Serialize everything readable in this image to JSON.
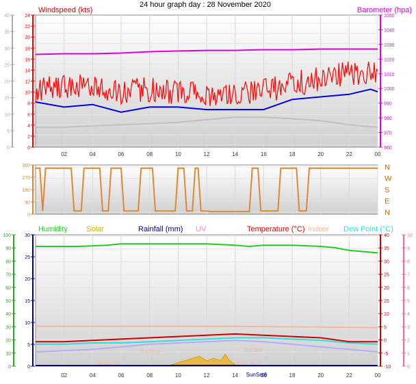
{
  "title": "24 hour graph day : 28 November 2020",
  "x_tick_labels": [
    "02",
    "04",
    "06",
    "08",
    "10",
    "12",
    "14",
    "16",
    "18",
    "20",
    "22",
    "00"
  ],
  "colors": {
    "windspeed": "#ff0000",
    "wind_avg": "#0000dd",
    "wind_grey": "#c0c0c0",
    "barometer": "#dd00dd",
    "direction": "#dd8833",
    "humidity": "#22cc22",
    "solar": "#ccaa00",
    "rainfall": "#000088",
    "uv": "#ff88cc",
    "temperature": "#cc0000",
    "indoor": "#f0b8a0",
    "dewpoint": "#33dddd",
    "lavender": "#b0b0ff"
  },
  "chart_data": [
    {
      "type": "line",
      "legend": {
        "left": "Windspeed (kts)",
        "right": "Barometer (hpa)"
      },
      "x_range": [
        0,
        24
      ],
      "y_left_ticks": [
        "0",
        "2",
        "4",
        "6",
        "8",
        "10",
        "12",
        "14",
        "16",
        "18",
        "20",
        "22",
        "24"
      ],
      "y_left_far_ticks": [
        "0",
        "5",
        "10",
        "15",
        "20",
        "25",
        "30",
        "35",
        "40"
      ],
      "y_right_ticks": [
        "960",
        "970",
        "980",
        "990",
        "1000",
        "1010",
        "1020",
        "1030",
        "1040",
        "1050"
      ],
      "ylim_left": [
        0,
        24
      ],
      "ylim_right": [
        960,
        1050
      ],
      "series": [
        {
          "key": "gust",
          "x": [
            0,
            2,
            4,
            6,
            8,
            10,
            12,
            14,
            16,
            18,
            20,
            22,
            24
          ],
          "values": [
            11,
            11.5,
            11.5,
            10.5,
            11,
            10.5,
            10,
            10,
            10.5,
            12,
            13,
            14,
            14
          ]
        },
        {
          "key": "avg",
          "x": [
            0,
            2,
            4,
            6,
            8,
            10,
            12,
            14,
            16,
            18,
            20,
            22,
            23.5,
            24
          ],
          "values": [
            8.5,
            7.5,
            8,
            6.5,
            7.5,
            7.5,
            7,
            7,
            7,
            9,
            9.5,
            10,
            11,
            10.5
          ]
        },
        {
          "key": "grey",
          "x": [
            0,
            2,
            4,
            6,
            8,
            10,
            12,
            14,
            16,
            18,
            20,
            22,
            24
          ],
          "values": [
            3.5,
            3.5,
            3.8,
            4,
            4.2,
            4.5,
            5,
            5.5,
            5.5,
            5.2,
            4.8,
            4,
            3.5
          ]
        },
        {
          "key": "baro",
          "x": [
            0,
            2,
            4,
            6,
            8,
            10,
            12,
            14,
            16,
            18,
            20,
            22,
            24
          ],
          "values": [
            1027,
            1027.5,
            1027.5,
            1028,
            1029,
            1029.5,
            1030,
            1030,
            1030.5,
            1030.5,
            1031,
            1031,
            1031
          ]
        }
      ]
    },
    {
      "type": "line",
      "y_left_ticks": [
        "0",
        "90",
        "180",
        "270",
        "360"
      ],
      "y_right_ticks": [
        "N",
        "E",
        "S",
        "W",
        "N"
      ],
      "ylim": [
        0,
        360
      ],
      "series": [
        {
          "key": "direction",
          "x": [
            0,
            0.3,
            0.5,
            0.7,
            2.5,
            2.7,
            3.2,
            3.4,
            4.5,
            4.7,
            5.1,
            5.3,
            6.0,
            6.2,
            7.2,
            7.4,
            8.2,
            8.4,
            9.8,
            10.0,
            10.4,
            10.6,
            11.0,
            11.2,
            11.4,
            11.6,
            12.0,
            12.2,
            15.0,
            15.2,
            15.6,
            15.8,
            17.0,
            17.2,
            18.3,
            18.5,
            19.0,
            19.2,
            20.0,
            20.2,
            24
          ],
          "values": [
            350,
            350,
            10,
            350,
            350,
            10,
            10,
            350,
            350,
            10,
            10,
            350,
            350,
            10,
            10,
            350,
            350,
            10,
            10,
            350,
            350,
            10,
            10,
            350,
            350,
            10,
            10,
            5,
            5,
            350,
            350,
            10,
            10,
            350,
            350,
            10,
            10,
            350,
            350,
            350,
            350
          ]
        }
      ]
    },
    {
      "type": "line",
      "legend": [
        "Humidity",
        "Solar",
        "Rainfall (mm)",
        "UV",
        "Temperature (°C)",
        "Indoor",
        "Dew Point (°C)"
      ],
      "y_far_left_ticks": [
        "0",
        "10",
        "20",
        "30",
        "40",
        "50",
        "60",
        "70",
        "80",
        "90",
        "100"
      ],
      "y_left_ticks": [
        "0",
        "5",
        "10",
        "15",
        "20",
        "25",
        "30"
      ],
      "y_right_ticks": [
        "-10",
        "-5",
        "0",
        "5",
        "10",
        "15",
        "20",
        "25",
        "30",
        "35",
        "40"
      ],
      "y_far_right_ticks": [
        "0",
        "1",
        "2",
        "3",
        "4",
        "5",
        "6",
        "7",
        "8",
        "9",
        "10"
      ],
      "ylim_temp": [
        -10,
        40
      ],
      "annotations": [
        "Moon Set",
        "SunRise",
        "SunSet",
        "Moon Rise",
        "SunSet6"
      ],
      "series": [
        {
          "key": "humidity",
          "x": [
            0,
            3,
            5,
            6,
            10,
            12,
            14,
            15,
            16,
            18,
            20,
            21,
            22,
            23,
            24
          ],
          "values": [
            92,
            92,
            93,
            94,
            94,
            94,
            93,
            92,
            93,
            93,
            92,
            91,
            89,
            88,
            87
          ]
        },
        {
          "key": "indoor",
          "x": [
            0,
            6,
            12,
            18,
            24
          ],
          "values": [
            5,
            5,
            5,
            4.8,
            4.5
          ]
        },
        {
          "key": "temperature",
          "x": [
            0,
            2,
            4,
            6,
            8,
            10,
            12,
            14,
            16,
            18,
            20,
            22,
            24
          ],
          "values": [
            -1,
            -1,
            -0.5,
            0,
            0.5,
            1,
            1.5,
            2,
            1.5,
            1,
            0.5,
            -1,
            -1
          ]
        },
        {
          "key": "dewpoint",
          "x": [
            0,
            2,
            4,
            6,
            8,
            10,
            12,
            14,
            16,
            18,
            20,
            22,
            24
          ],
          "values": [
            -2,
            -2,
            -1.5,
            -1.5,
            -1,
            -0.5,
            0,
            0.5,
            0.5,
            0,
            -0.5,
            -1.5,
            -2
          ]
        },
        {
          "key": "lavender",
          "x": [
            0,
            2,
            4,
            6,
            8,
            10,
            12,
            14,
            16,
            18,
            20,
            22,
            24
          ],
          "values": [
            -5,
            -4.5,
            -4,
            -3,
            -2,
            -1.5,
            -1,
            -0.5,
            -1,
            -2,
            -3,
            -4,
            -5
          ]
        },
        {
          "key": "solar",
          "x": [
            9.5,
            10,
            10.5,
            11,
            11.5,
            12,
            12.5,
            13,
            13.3,
            13.6,
            14
          ],
          "values": [
            0,
            0.5,
            1,
            1.5,
            2,
            1,
            1.5,
            1,
            2.5,
            1,
            0
          ]
        }
      ]
    }
  ]
}
